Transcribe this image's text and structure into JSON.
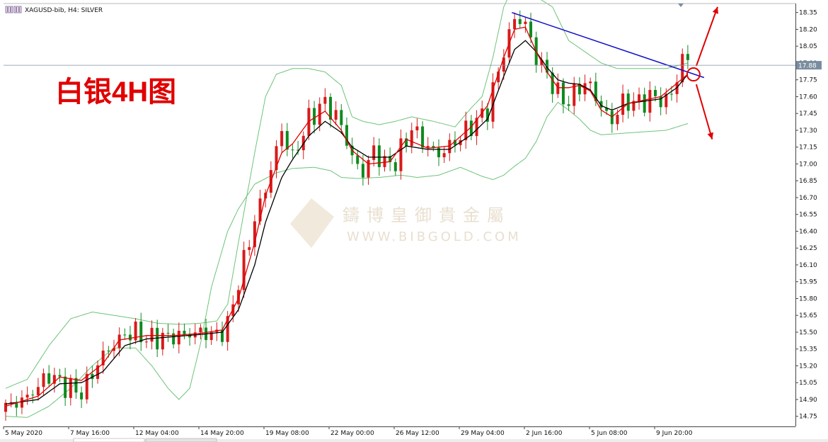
{
  "header": {
    "symbol_label": "XAGUSD-bib, H4:  SILVER"
  },
  "annotation": {
    "title": "白银4H图"
  },
  "watermark": {
    "chinese": "鑄博皇御貴金屬",
    "english": "WWW.BIBGOLD.COM"
  },
  "price_marker": {
    "label": "17.88"
  },
  "colors": {
    "bull": "#d81a1a",
    "bear": "#0f8a1f",
    "ma_fast": "#e00000",
    "ma_slow": "#000000",
    "bands": "#6ec37a",
    "trendline": "#1010c8",
    "arrows": "#e00000",
    "price_line": "#7a8da0"
  },
  "chart_data": {
    "type": "candlestick",
    "symbol": "XAGUSD-bib",
    "timeframe": "H4",
    "ylim": [
      14.66,
      18.43
    ],
    "y_ticks": [
      "18.35",
      "18.20",
      "18.05",
      "17.90",
      "17.75",
      "17.60",
      "17.45",
      "17.30",
      "17.15",
      "17.00",
      "16.85",
      "16.70",
      "16.55",
      "16.40",
      "16.25",
      "16.10",
      "15.95",
      "15.80",
      "15.65",
      "15.50",
      "15.35",
      "15.20",
      "15.05",
      "14.90",
      "14.75"
    ],
    "x_ticks": [
      "5 May 2020",
      "7 May 16:00",
      "12 May 04:00",
      "14 May 20:00",
      "19 May 08:00",
      "22 May 00:00",
      "26 May 12:00",
      "29 May 04:00",
      "2 Jun 16:00",
      "5 Jun 08:00",
      "9 Jun 20:00"
    ],
    "current_price": 17.88,
    "close_path": [
      [
        0,
        14.83
      ],
      [
        4,
        14.92
      ],
      [
        8,
        15.12
      ],
      [
        11,
        15.02
      ],
      [
        14,
        14.96
      ],
      [
        18,
        15.3
      ],
      [
        22,
        15.48
      ],
      [
        24,
        15.5
      ],
      [
        26,
        15.44
      ],
      [
        31,
        15.46
      ],
      [
        36,
        15.5
      ],
      [
        39,
        15.47
      ],
      [
        41,
        15.56
      ],
      [
        43,
        15.95
      ],
      [
        46,
        16.5
      ],
      [
        48,
        16.78
      ],
      [
        51,
        17.3
      ],
      [
        53,
        17.05
      ],
      [
        56,
        17.4
      ],
      [
        59,
        17.55
      ],
      [
        62,
        17.35
      ],
      [
        64,
        17.05
      ],
      [
        66,
        16.92
      ],
      [
        68,
        17.12
      ],
      [
        70,
        17.0
      ],
      [
        72,
        17.02
      ],
      [
        75,
        17.32
      ],
      [
        78,
        17.15
      ],
      [
        80,
        17.08
      ],
      [
        83,
        17.2
      ],
      [
        86,
        17.34
      ],
      [
        89,
        17.48
      ],
      [
        92,
        18.0
      ],
      [
        94,
        18.3
      ],
      [
        96,
        18.25
      ],
      [
        98,
        17.95
      ],
      [
        100,
        17.8
      ],
      [
        102,
        17.62
      ],
      [
        104,
        17.55
      ],
      [
        106,
        17.7
      ],
      [
        108,
        17.7
      ],
      [
        110,
        17.5
      ],
      [
        112,
        17.38
      ],
      [
        114,
        17.55
      ],
      [
        117,
        17.55
      ],
      [
        120,
        17.6
      ],
      [
        122,
        17.55
      ],
      [
        124,
        17.75
      ],
      [
        125,
        17.95
      ],
      [
        126,
        17.92
      ]
    ],
    "ma_fast_path": [
      [
        0,
        14.84
      ],
      [
        6,
        14.93
      ],
      [
        10,
        15.1
      ],
      [
        14,
        15.07
      ],
      [
        18,
        15.22
      ],
      [
        21,
        15.43
      ],
      [
        26,
        15.47
      ],
      [
        31,
        15.47
      ],
      [
        36,
        15.49
      ],
      [
        40,
        15.52
      ],
      [
        43,
        15.8
      ],
      [
        46,
        16.3
      ],
      [
        48,
        16.72
      ],
      [
        51,
        17.1
      ],
      [
        53,
        17.18
      ],
      [
        56,
        17.38
      ],
      [
        59,
        17.47
      ],
      [
        62,
        17.3
      ],
      [
        64,
        17.12
      ],
      [
        67,
        17.0
      ],
      [
        71,
        17.02
      ],
      [
        74,
        17.22
      ],
      [
        78,
        17.14
      ],
      [
        82,
        17.16
      ],
      [
        86,
        17.33
      ],
      [
        89,
        17.52
      ],
      [
        92,
        17.95
      ],
      [
        94,
        18.2
      ],
      [
        96,
        18.22
      ],
      [
        98,
        18.0
      ],
      [
        100,
        17.82
      ],
      [
        102,
        17.68
      ],
      [
        104,
        17.68
      ],
      [
        106,
        17.7
      ],
      [
        108,
        17.65
      ],
      [
        110,
        17.48
      ],
      [
        112,
        17.42
      ],
      [
        115,
        17.54
      ],
      [
        118,
        17.57
      ],
      [
        121,
        17.6
      ],
      [
        124,
        17.72
      ],
      [
        126,
        17.8
      ]
    ],
    "ma_slow_path": [
      [
        0,
        14.86
      ],
      [
        6,
        14.9
      ],
      [
        10,
        15.04
      ],
      [
        14,
        15.05
      ],
      [
        18,
        15.15
      ],
      [
        22,
        15.38
      ],
      [
        26,
        15.44
      ],
      [
        31,
        15.46
      ],
      [
        36,
        15.48
      ],
      [
        40,
        15.5
      ],
      [
        43,
        15.7
      ],
      [
        46,
        16.1
      ],
      [
        48,
        16.48
      ],
      [
        51,
        16.88
      ],
      [
        53,
        17.04
      ],
      [
        56,
        17.25
      ],
      [
        59,
        17.38
      ],
      [
        62,
        17.28
      ],
      [
        64,
        17.15
      ],
      [
        67,
        17.06
      ],
      [
        71,
        17.06
      ],
      [
        74,
        17.16
      ],
      [
        78,
        17.13
      ],
      [
        82,
        17.13
      ],
      [
        86,
        17.26
      ],
      [
        89,
        17.4
      ],
      [
        92,
        17.78
      ],
      [
        94,
        18.02
      ],
      [
        96,
        18.1
      ],
      [
        98,
        18.0
      ],
      [
        100,
        17.86
      ],
      [
        102,
        17.75
      ],
      [
        104,
        17.72
      ],
      [
        106,
        17.71
      ],
      [
        108,
        17.66
      ],
      [
        110,
        17.52
      ],
      [
        112,
        17.48
      ],
      [
        115,
        17.54
      ],
      [
        118,
        17.56
      ],
      [
        121,
        17.58
      ],
      [
        124,
        17.68
      ],
      [
        126,
        17.8
      ]
    ],
    "bollinger_upper_path": [
      [
        0,
        15.0
      ],
      [
        4,
        15.08
      ],
      [
        8,
        15.38
      ],
      [
        12,
        15.62
      ],
      [
        16,
        15.68
      ],
      [
        20,
        15.65
      ],
      [
        24,
        15.62
      ],
      [
        28,
        15.58
      ],
      [
        32,
        15.57
      ],
      [
        36,
        15.58
      ],
      [
        39,
        15.6
      ],
      [
        41,
        15.75
      ],
      [
        43,
        16.3
      ],
      [
        46,
        17.1
      ],
      [
        48,
        17.6
      ],
      [
        50,
        17.8
      ],
      [
        53,
        17.85
      ],
      [
        56,
        17.85
      ],
      [
        59,
        17.82
      ],
      [
        62,
        17.7
      ],
      [
        64,
        17.42
      ],
      [
        66,
        17.38
      ],
      [
        69,
        17.35
      ],
      [
        72,
        17.38
      ],
      [
        75,
        17.42
      ],
      [
        79,
        17.38
      ],
      [
        83,
        17.33
      ],
      [
        86,
        17.5
      ],
      [
        88,
        17.6
      ],
      [
        90,
        17.95
      ],
      [
        92,
        18.4
      ],
      [
        94,
        18.6
      ],
      [
        96,
        18.52
      ],
      [
        98,
        18.49
      ],
      [
        101,
        18.4
      ],
      [
        104,
        18.1
      ],
      [
        107,
        18.0
      ],
      [
        110,
        17.9
      ],
      [
        113,
        17.85
      ],
      [
        116,
        17.85
      ],
      [
        119,
        17.85
      ],
      [
        122,
        17.85
      ],
      [
        126,
        17.9
      ]
    ],
    "bollinger_lower_path": [
      [
        0,
        14.75
      ],
      [
        4,
        14.74
      ],
      [
        8,
        14.84
      ],
      [
        12,
        15.0
      ],
      [
        16,
        15.2
      ],
      [
        20,
        15.36
      ],
      [
        24,
        15.36
      ],
      [
        27,
        15.2
      ],
      [
        30,
        15.0
      ],
      [
        32,
        14.9
      ],
      [
        34,
        15.0
      ],
      [
        36,
        15.4
      ],
      [
        38,
        15.9
      ],
      [
        41,
        16.4
      ],
      [
        43,
        16.6
      ],
      [
        46,
        16.82
      ],
      [
        50,
        16.92
      ],
      [
        53,
        16.96
      ],
      [
        57,
        16.97
      ],
      [
        60,
        16.94
      ],
      [
        62,
        16.88
      ],
      [
        65,
        16.87
      ],
      [
        69,
        16.88
      ],
      [
        73,
        16.9
      ],
      [
        76,
        16.88
      ],
      [
        80,
        16.9
      ],
      [
        84,
        16.97
      ],
      [
        86,
        16.93
      ],
      [
        88,
        16.89
      ],
      [
        90,
        16.86
      ],
      [
        92,
        16.9
      ],
      [
        94,
        16.98
      ],
      [
        96,
        17.05
      ],
      [
        98,
        17.2
      ],
      [
        100,
        17.42
      ],
      [
        102,
        17.55
      ],
      [
        104,
        17.48
      ],
      [
        106,
        17.4
      ],
      [
        108,
        17.3
      ],
      [
        110,
        17.26
      ],
      [
        113,
        17.27
      ],
      [
        116,
        17.28
      ],
      [
        119,
        17.29
      ],
      [
        122,
        17.3
      ],
      [
        126,
        17.36
      ]
    ],
    "trendline": [
      [
        93.5,
        18.35
      ],
      [
        129,
        17.77
      ]
    ],
    "forecast": {
      "up_target": 18.4,
      "down_target": 17.22
    }
  }
}
